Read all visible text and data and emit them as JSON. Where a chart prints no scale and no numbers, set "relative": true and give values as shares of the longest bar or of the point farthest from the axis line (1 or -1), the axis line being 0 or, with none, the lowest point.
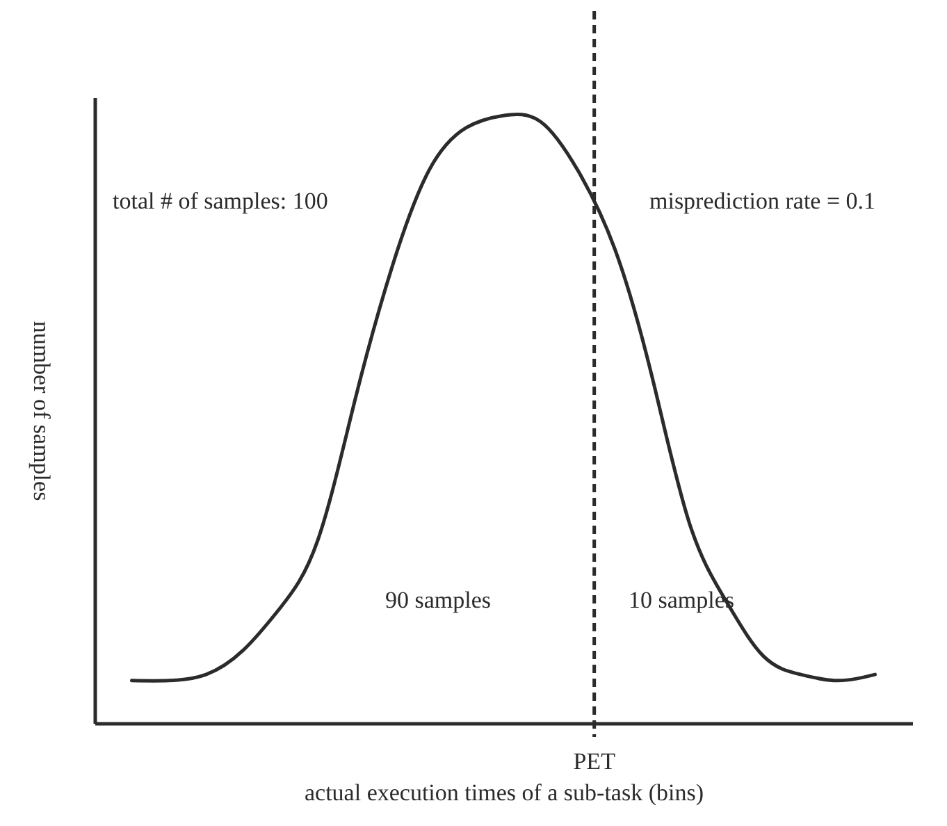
{
  "chart_data": {
    "type": "line",
    "relative": true,
    "xlabel": "actual execution times of a sub-task (bins)",
    "ylabel": "number of samples",
    "categories": [
      null,
      null,
      null,
      null,
      null,
      null,
      null,
      null,
      null,
      null,
      null,
      null,
      null,
      null,
      null,
      null,
      null,
      null,
      null,
      null,
      null
    ],
    "series": [
      {
        "color": "#2b2b2b",
        "values": [
          0.07,
          0.07,
          0.08,
          0.12,
          0.19,
          0.3,
          0.53,
          0.75,
          0.91,
          0.98,
          1,
          0.99,
          0.91,
          0.78,
          0.57,
          0.33,
          0.2,
          0.11,
          0.08,
          0.07,
          0.08
        ]
      }
    ],
    "annotations": [
      "total # of samples: 100",
      "misprediction rate = 0.1",
      "90 samples",
      "10 samples",
      "PET"
    ],
    "grid": false,
    "marker": "none",
    "line_style": "solid"
  }
}
